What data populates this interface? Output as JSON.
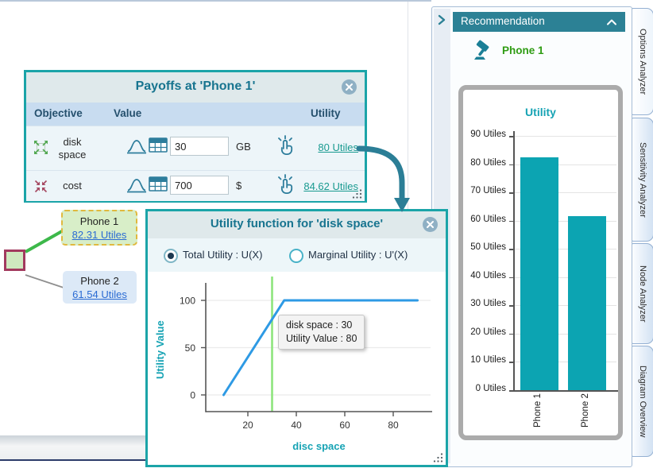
{
  "colors": {
    "dialog_border": "#1ba4a8",
    "panel_header": "#2c8195",
    "bar_teal": "#0ca4b2",
    "best_option_green": "#2f9c13",
    "tree_link_blue": "#2a6bd3",
    "utility_link_teal": "#199a90",
    "selected_option_dash": "#e0b93e"
  },
  "canvas": {
    "tree": {
      "options": [
        {
          "label": "Phone 1",
          "utility_link": "82.31 Utiles"
        },
        {
          "label": "Phone 2",
          "utility_link": "61.54 Utiles"
        }
      ]
    }
  },
  "payoffs_dialog": {
    "title": "Payoffs at 'Phone 1'",
    "columns": {
      "objective": "Objective",
      "value": "Value",
      "utility": "Utility"
    },
    "rows": [
      {
        "name": "disk space",
        "value": "30",
        "unit": "GB",
        "utility_link": "80 Utiles"
      },
      {
        "name": "cost",
        "value": "700",
        "unit": "$",
        "utility_link": "84.62 Utiles"
      }
    ]
  },
  "utility_dialog": {
    "title": "Utility function for 'disk space'",
    "radios": {
      "total": "Total Utility : U(X)",
      "marginal": "Marginal Utility : U'(X)"
    }
  },
  "recommendation_panel": {
    "header": "Recommendation",
    "best_option": "Phone 1"
  },
  "side_tabs": [
    {
      "label": "Options Analyzer"
    },
    {
      "label": "Sensitivity Analyzer"
    },
    {
      "label": "Node Analyzer"
    },
    {
      "label": "Diagram Overview"
    }
  ],
  "chart_data": [
    {
      "id": "utility-function",
      "type": "line",
      "title": "",
      "xlabel": "disc space",
      "ylabel": "Utility Value",
      "x": [
        10,
        35,
        90
      ],
      "y": [
        0,
        100,
        100
      ],
      "xticks": [
        20,
        40,
        60,
        80
      ],
      "yticks": [
        0,
        50,
        100
      ],
      "xlim": [
        5,
        95
      ],
      "ylim": [
        0,
        115
      ],
      "grid": true,
      "line_color": "#2e9ae4",
      "marker_x": 30,
      "marker_color": "#8ee57d",
      "annotations": [
        "disk space : 30",
        "Utility Value : 80"
      ]
    },
    {
      "id": "recommendation-utility",
      "type": "bar",
      "title": "Utility",
      "categories": [
        "Phone 1",
        "Phone 2"
      ],
      "values": [
        82.31,
        61.54
      ],
      "ylim": [
        0,
        90
      ],
      "tick_step": 10,
      "tick_suffix": " Utiles",
      "grid": true,
      "bar_color": "#0ca4b2"
    }
  ]
}
